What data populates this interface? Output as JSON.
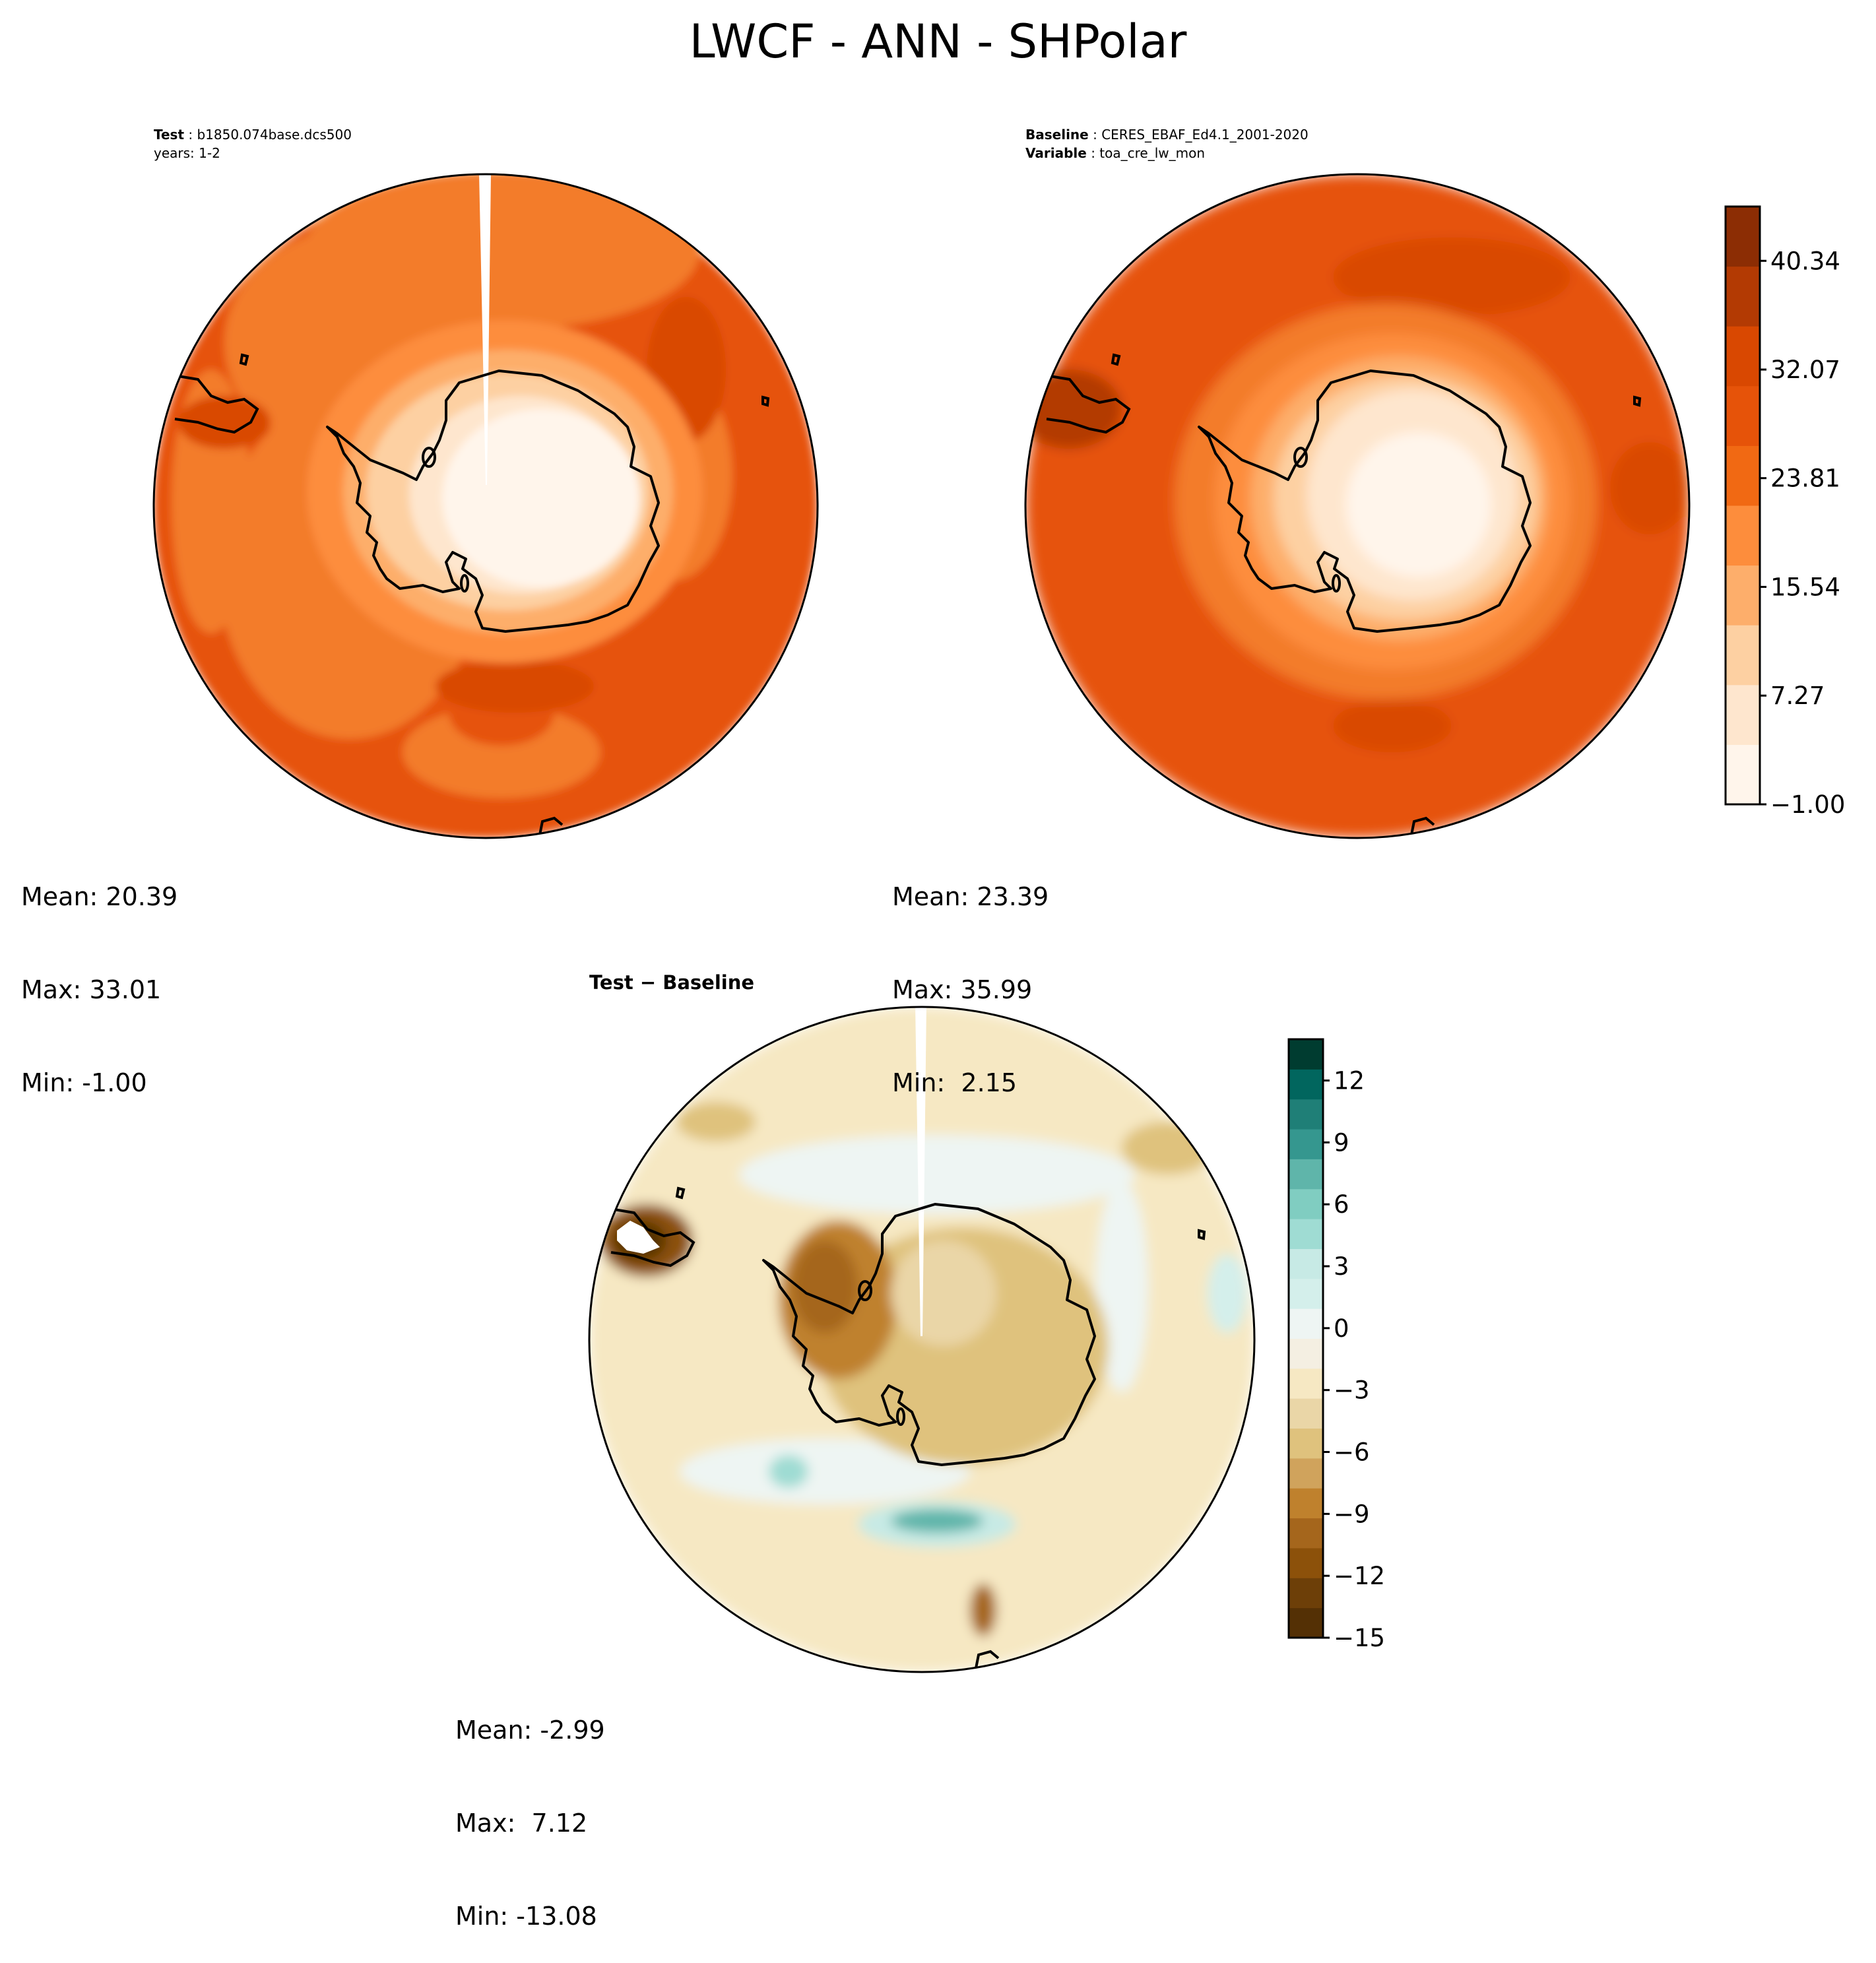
{
  "title": "LWCF - ANN - SHPolar",
  "panels": {
    "test": {
      "label": "Test",
      "case": "b1850.074base.dcs500",
      "years": "years: 1-2",
      "mean": "Mean: 20.39",
      "max": "Max: 33.01",
      "min": "Min: -1.00"
    },
    "baseline": {
      "label": "Baseline",
      "case": "CERES_EBAF_Ed4.1_2001-2020",
      "variable_label": "Variable",
      "variable": "toa_cre_lw_mon",
      "mean": "Mean: 23.39",
      "max": "Max: 35.99",
      "min": "Min:  2.15"
    },
    "diff": {
      "title": "Test − Baseline",
      "mean": "Mean: -2.99",
      "max": "Max:  7.12",
      "min": "Min: -13.08"
    }
  },
  "chart_data": [
    {
      "type": "heatmap",
      "name": "Test",
      "projection": "south polar stereographic",
      "colormap": "Oranges",
      "colorbar_ticks": [
        "−1.00",
        "7.27",
        "15.54",
        "23.81",
        "32.07",
        "40.34"
      ],
      "colorbar_range": [
        -1.0,
        44.47
      ],
      "colors": [
        "#fff5eb",
        "#fee6ce",
        "#fdd0a2",
        "#fdae6b",
        "#fd8d3c",
        "#f16913",
        "#e65309",
        "#d94801",
        "#b33a03",
        "#8c2d04"
      ],
      "stats": {
        "mean": 20.39,
        "max": 33.01,
        "min": -1.0
      }
    },
    {
      "type": "heatmap",
      "name": "Baseline",
      "projection": "south polar stereographic",
      "colormap": "Oranges",
      "colorbar_ticks": [
        "−1.00",
        "7.27",
        "15.54",
        "23.81",
        "32.07",
        "40.34"
      ],
      "colorbar_range": [
        -1.0,
        44.47
      ],
      "stats": {
        "mean": 23.39,
        "max": 35.99,
        "min": 2.15
      }
    },
    {
      "type": "heatmap",
      "name": "Test − Baseline",
      "projection": "south polar stereographic",
      "colormap": "BrBG",
      "colorbar_ticks": [
        "−15",
        "−12",
        "−9",
        "−6",
        "−3",
        "0",
        "3",
        "6",
        "9",
        "12"
      ],
      "colorbar_range": [
        -15,
        14
      ],
      "colors": [
        "#543005",
        "#6d3f08",
        "#8c510a",
        "#a5661c",
        "#bf812d",
        "#d0a35c",
        "#dfc27d",
        "#ead6a7",
        "#f6e8c3",
        "#f4efe2",
        "#eef5f3",
        "#d4efeb",
        "#c7eae5",
        "#9fdcd3",
        "#80cdc1",
        "#5fb5aa",
        "#35978f",
        "#1f7f77",
        "#01665e",
        "#003c30"
      ],
      "stats": {
        "mean": -2.99,
        "max": 7.12,
        "min": -13.08
      }
    }
  ]
}
